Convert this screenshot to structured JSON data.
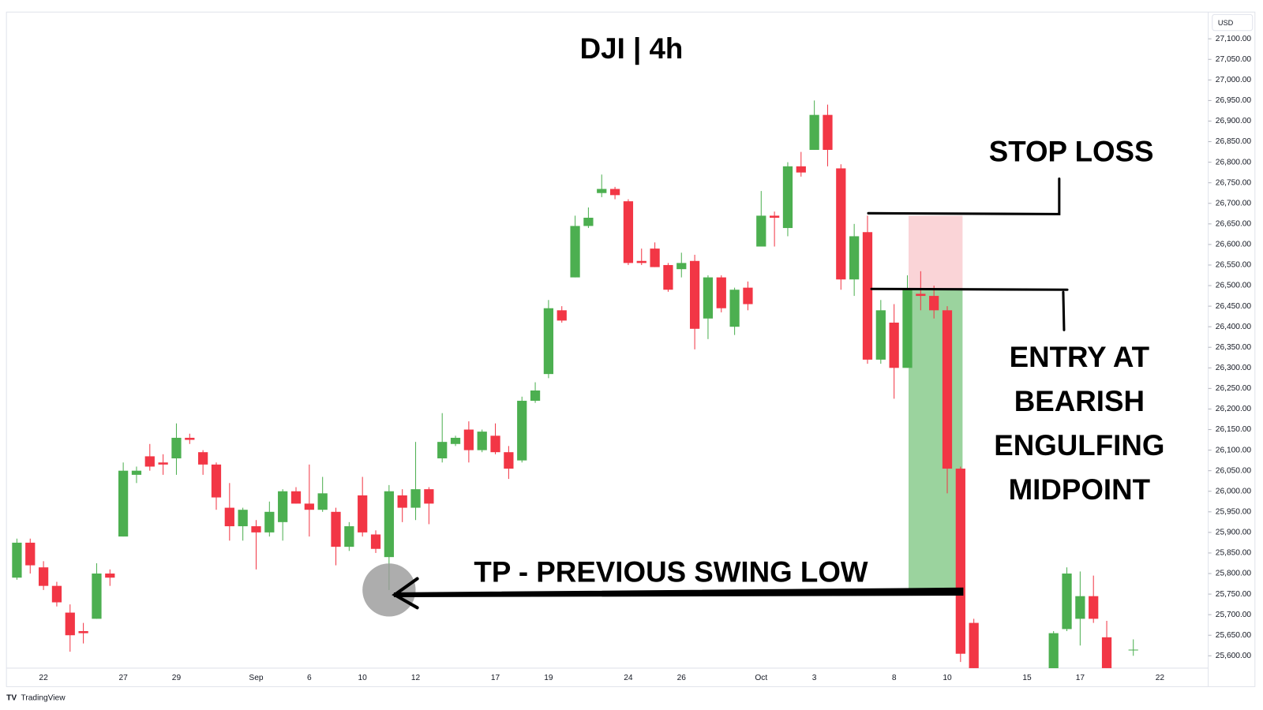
{
  "chart_data": {
    "type": "candlestick",
    "title": "DJI | 4h",
    "currency": "USD",
    "brand": "TradingView",
    "stop_loss_label": "STOP LOSS",
    "entry_label": [
      "ENTRY AT",
      "BEARISH",
      "ENGULFING",
      "MIDPOINT"
    ],
    "take_profit_label": "TP - PREVIOUS SWING LOW",
    "stop_loss": 26670,
    "entry": 26490,
    "take_profit": 25760,
    "up_color": "#4caf50",
    "down_color": "#f23645",
    "categories": [
      null,
      null,
      "22",
      null,
      null,
      null,
      null,
      null,
      "27",
      null,
      null,
      null,
      "29",
      null,
      null,
      null,
      null,
      null,
      "Sep",
      null,
      null,
      null,
      "6",
      null,
      null,
      null,
      "10",
      null,
      null,
      null,
      "12",
      null,
      null,
      null,
      null,
      null,
      "17",
      null,
      null,
      null,
      "19",
      null,
      null,
      null,
      null,
      null,
      "24",
      null,
      null,
      null,
      "26",
      null,
      null,
      null,
      null,
      null,
      "Oct",
      null,
      null,
      null,
      "3",
      null,
      null,
      null,
      null,
      null,
      "8",
      null,
      null,
      null,
      "10",
      null,
      null,
      null,
      null,
      null,
      "15",
      null,
      null,
      null,
      "17",
      null,
      null,
      null,
      null,
      null,
      "22"
    ],
    "open": [
      25790,
      25875,
      25815,
      25770,
      25705,
      25660,
      25690,
      25800,
      25890,
      26040,
      26085,
      26070,
      26080,
      26130,
      26095,
      26065,
      25960,
      25915,
      25915,
      25900,
      25925,
      26000,
      25970,
      25955,
      25950,
      25865,
      25990,
      25895,
      25840,
      25990,
      25960,
      26005,
      26080,
      26115,
      26150,
      26100,
      26135,
      26095,
      26075,
      26220,
      26285,
      26440,
      26520,
      26645,
      26725,
      26735,
      26705,
      26560,
      26590,
      26550,
      26540,
      26560,
      26420,
      26520,
      26400,
      26495,
      26595,
      26670,
      26640,
      26790,
      26830,
      26915,
      26785,
      26515,
      26630,
      26320,
      26410,
      26300,
      26480,
      26475,
      26440,
      26055,
      25680,
      null,
      null,
      null,
      null,
      null,
      25560,
      25665,
      25690,
      25745,
      25645,
      null,
      25615,
      null,
      null
    ],
    "high": [
      25885,
      25885,
      25830,
      25780,
      25725,
      25680,
      25825,
      25810,
      26070,
      26060,
      26115,
      26090,
      26165,
      26140,
      26100,
      26070,
      26020,
      25960,
      25930,
      25975,
      26005,
      26010,
      26065,
      26035,
      25960,
      25925,
      26035,
      25905,
      26015,
      26005,
      26120,
      26010,
      26190,
      26135,
      26170,
      26150,
      26165,
      26110,
      26230,
      26265,
      26465,
      26450,
      26670,
      26690,
      26770,
      26740,
      26710,
      26590,
      26605,
      26555,
      26580,
      26575,
      26525,
      26525,
      26495,
      26510,
      26730,
      26680,
      26800,
      26825,
      26950,
      26940,
      26795,
      26650,
      26670,
      26465,
      26455,
      26525,
      26535,
      26500,
      26450,
      26060,
      25690,
      null,
      null,
      null,
      null,
      null,
      25660,
      25815,
      25805,
      25795,
      25685,
      null,
      25640,
      null,
      null
    ],
    "low": [
      25785,
      25800,
      25760,
      25720,
      25610,
      25630,
      25690,
      25770,
      25890,
      26020,
      26050,
      26040,
      26040,
      26115,
      26040,
      25955,
      25880,
      25880,
      25810,
      25890,
      25880,
      25970,
      25890,
      25950,
      25820,
      25855,
      25890,
      25850,
      25760,
      25925,
      25930,
      25920,
      26070,
      26110,
      26070,
      26095,
      26090,
      26030,
      26070,
      26215,
      26275,
      26410,
      26520,
      26640,
      26715,
      26710,
      26550,
      26550,
      26545,
      26485,
      26520,
      26345,
      26370,
      26435,
      26380,
      26440,
      26595,
      26595,
      26620,
      26765,
      26830,
      26790,
      26490,
      26475,
      26310,
      26310,
      26225,
      26300,
      26440,
      26420,
      25995,
      25585,
      25560,
      null,
      null,
      null,
      null,
      null,
      25560,
      25660,
      25625,
      25680,
      25560,
      null,
      25600,
      null,
      null
    ],
    "close": [
      25875,
      25820,
      25770,
      25730,
      25650,
      25655,
      25800,
      25790,
      26050,
      26050,
      26060,
      26065,
      26130,
      26125,
      26065,
      25985,
      25915,
      25955,
      25900,
      25950,
      26000,
      25970,
      25955,
      25995,
      25865,
      25915,
      25900,
      25860,
      26000,
      25960,
      26005,
      25970,
      26120,
      26130,
      26100,
      26145,
      26095,
      26055,
      26220,
      26245,
      26445,
      26415,
      26645,
      26665,
      26735,
      26720,
      26555,
      26555,
      26545,
      26490,
      26555,
      26395,
      26520,
      26445,
      26490,
      26455,
      26670,
      26665,
      26790,
      26775,
      26915,
      26830,
      26515,
      26620,
      26320,
      26440,
      26300,
      26490,
      26475,
      26440,
      26055,
      25605,
      25570,
      null,
      null,
      null,
      null,
      null,
      25655,
      25800,
      25745,
      25690,
      25570,
      null,
      25615,
      null,
      null
    ],
    "ylim": [
      25570,
      27165
    ],
    "yticks": [
      {
        "value": 25600,
        "label": "25,600.00"
      },
      {
        "value": 25650,
        "label": "25,650.00"
      },
      {
        "value": 25700,
        "label": "25,700.00"
      },
      {
        "value": 25750,
        "label": "25,750.00"
      },
      {
        "value": 25800,
        "label": "25,800.00"
      },
      {
        "value": 25850,
        "label": "25,850.00"
      },
      {
        "value": 25900,
        "label": "25,900.00"
      },
      {
        "value": 25950,
        "label": "25,950.00"
      },
      {
        "value": 26000,
        "label": "26,000.00"
      },
      {
        "value": 26050,
        "label": "26,050.00"
      },
      {
        "value": 26100,
        "label": "26,100.00"
      },
      {
        "value": 26150,
        "label": "26,150.00"
      },
      {
        "value": 26200,
        "label": "26,200.00"
      },
      {
        "value": 26250,
        "label": "26,250.00"
      },
      {
        "value": 26300,
        "label": "26,300.00"
      },
      {
        "value": 26350,
        "label": "26,350.00"
      },
      {
        "value": 26400,
        "label": "26,400.00"
      },
      {
        "value": 26450,
        "label": "26,450.00"
      },
      {
        "value": 26500,
        "label": "26,500.00"
      },
      {
        "value": 26550,
        "label": "26,550.00"
      },
      {
        "value": 26600,
        "label": "26,600.00"
      },
      {
        "value": 26650,
        "label": "26,650.00"
      },
      {
        "value": 26700,
        "label": "26,700.00"
      },
      {
        "value": 26750,
        "label": "26,750.00"
      },
      {
        "value": 26800,
        "label": "26,800.00"
      },
      {
        "value": 26850,
        "label": "26,850.00"
      },
      {
        "value": 26900,
        "label": "26,900.00"
      },
      {
        "value": 26950,
        "label": "26,950.00"
      },
      {
        "value": 27000,
        "label": "27,000.00"
      },
      {
        "value": 27050,
        "label": "27,050.00"
      },
      {
        "value": 27100,
        "label": "27,100.00"
      }
    ],
    "grid": false
  }
}
